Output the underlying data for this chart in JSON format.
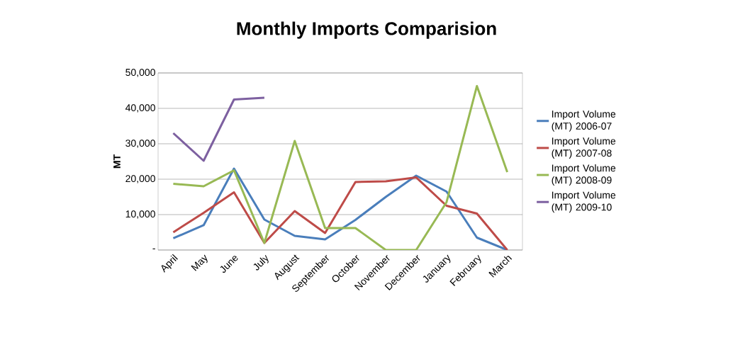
{
  "chart_data": {
    "type": "line",
    "title": "Monthly Imports Comparision",
    "ylabel": "MT",
    "categories": [
      "April",
      "May",
      "June",
      "July",
      "August",
      "September",
      "October",
      "November",
      "December",
      "January",
      "February",
      "March"
    ],
    "series": [
      {
        "name": "Import Volume (MT) 2006-07",
        "color": "#4a7ebb",
        "values": [
          3300,
          7000,
          23000,
          8600,
          4000,
          3000,
          8500,
          15000,
          21000,
          16500,
          3500,
          0
        ]
      },
      {
        "name": "Import Volume (MT) 2007-08",
        "color": "#be4b48",
        "values": [
          5000,
          10500,
          16300,
          2000,
          11000,
          4800,
          19200,
          19400,
          20500,
          12500,
          10300,
          0
        ]
      },
      {
        "name": "Import Volume (MT) 2008-09",
        "color": "#98b954",
        "values": [
          18700,
          18000,
          22500,
          2000,
          30800,
          6200,
          6200,
          0,
          0,
          13500,
          46300,
          22000
        ]
      },
      {
        "name": "Import Volume (MT) 2009-10",
        "color": "#7d60a0",
        "values": [
          33000,
          25200,
          42500,
          43000,
          null,
          null,
          null,
          null,
          null,
          null,
          null,
          null
        ]
      }
    ],
    "ylim": [
      0,
      50000
    ],
    "yticks": [
      {
        "value": 0,
        "label": "-"
      },
      {
        "value": 10000,
        "label": "10,000"
      },
      {
        "value": 20000,
        "label": "20,000"
      },
      {
        "value": 30000,
        "label": "30,000"
      },
      {
        "value": 40000,
        "label": "40,000"
      },
      {
        "value": 50000,
        "label": "50,000"
      }
    ],
    "grid": "y",
    "legend": "right",
    "marker": "none",
    "line_style": "solid"
  }
}
